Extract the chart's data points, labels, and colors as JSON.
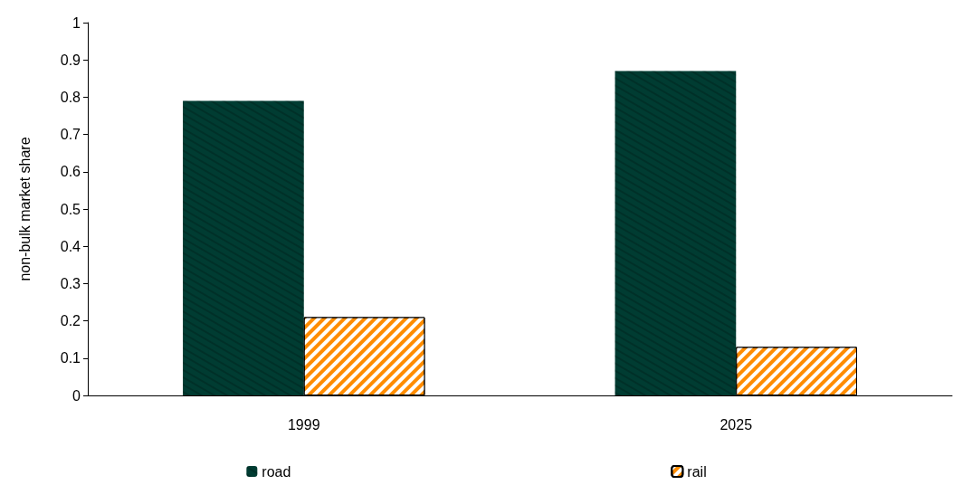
{
  "chart_data": {
    "type": "bar",
    "ylabel": "non-bulk market share",
    "categories": [
      "1999",
      "2025"
    ],
    "series": [
      {
        "name": "road",
        "color": "#003c32",
        "values": [
          0.79,
          0.87
        ]
      },
      {
        "name": "rail",
        "color": "#ff8c00",
        "values": [
          0.21,
          0.13
        ]
      }
    ],
    "ylim": [
      0,
      1
    ],
    "yticks": [
      0,
      0.1,
      0.2,
      0.3,
      0.4,
      0.5,
      0.6,
      0.7,
      0.8,
      0.9,
      1
    ],
    "grid": false,
    "legend": "bottom"
  }
}
